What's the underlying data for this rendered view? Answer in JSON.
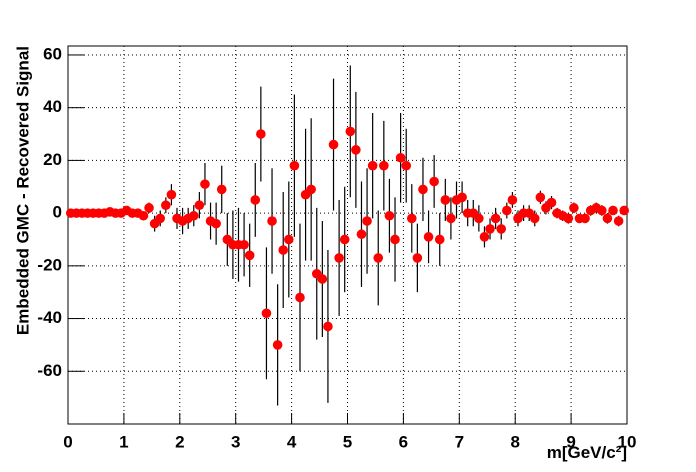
{
  "chart_data": {
    "type": "scatter",
    "x_label": "m[GeV/c²]",
    "y_label": "Embedded GMC - Recovered Signal",
    "xlim": [
      0,
      10
    ],
    "ylim": [
      -80,
      63.4
    ],
    "xticks": [
      0,
      1,
      2,
      3,
      4,
      5,
      6,
      7,
      8,
      9,
      10
    ],
    "yticks": [
      -60,
      -40,
      -20,
      0,
      20,
      40,
      60
    ],
    "grid": true,
    "series": [
      {
        "color": "#ff0000",
        "x": [
          0.05,
          0.15,
          0.25,
          0.35,
          0.45,
          0.55,
          0.65,
          0.75,
          0.85,
          0.95,
          1.05,
          1.15,
          1.25,
          1.35,
          1.45,
          1.55,
          1.65,
          1.75,
          1.85,
          1.95,
          2.05,
          2.15,
          2.25,
          2.35,
          2.45,
          2.55,
          2.65,
          2.75,
          2.85,
          2.95,
          3.05,
          3.15,
          3.25,
          3.35,
          3.45,
          3.55,
          3.65,
          3.75,
          3.85,
          3.95,
          4.05,
          4.15,
          4.25,
          4.35,
          4.45,
          4.55,
          4.65,
          4.75,
          4.85,
          4.95,
          5.05,
          5.15,
          5.25,
          5.35,
          5.45,
          5.55,
          5.65,
          5.75,
          5.85,
          5.95,
          6.05,
          6.15,
          6.25,
          6.35,
          6.45,
          6.55,
          6.65,
          6.75,
          6.85,
          6.95,
          7.05,
          7.15,
          7.25,
          7.35,
          7.45,
          7.55,
          7.65,
          7.75,
          7.85,
          7.95,
          8.05,
          8.15,
          8.25,
          8.35,
          8.45,
          8.55,
          8.65,
          8.75,
          8.85,
          8.95,
          9.05,
          9.15,
          9.25,
          9.35,
          9.45,
          9.55,
          9.65,
          9.75,
          9.85,
          9.95
        ],
        "values": [
          0,
          0,
          0,
          0,
          0,
          0,
          0,
          0.5,
          0,
          0,
          1,
          0,
          0,
          -1,
          2,
          -4,
          -2,
          3,
          7,
          -2,
          -3,
          -2,
          -1,
          3,
          11,
          -3,
          -4,
          9,
          -10,
          -12,
          -12,
          -12,
          -16,
          5,
          30,
          -38,
          -3,
          -50,
          -14,
          -10,
          18,
          -32,
          7,
          9,
          -23,
          -25,
          -43,
          26,
          -17,
          -10,
          31,
          24,
          -8,
          -3,
          18,
          -17,
          18,
          -1,
          -10,
          21,
          18,
          -2,
          -17,
          9,
          -9,
          12,
          -10,
          5,
          -2,
          5,
          6,
          0,
          0,
          -2,
          -9,
          -6,
          -2,
          -6,
          1,
          5,
          -2,
          0,
          0,
          -2,
          6,
          2,
          4,
          0,
          -1,
          -2,
          2,
          -2,
          -2,
          1,
          2,
          1,
          -2,
          1,
          -3,
          1
        ],
        "errors": [
          0.5,
          0.5,
          0.5,
          0.5,
          0.5,
          0.5,
          0.5,
          0.5,
          0.5,
          0.5,
          0.8,
          1,
          1.2,
          1.5,
          2,
          3,
          3,
          3,
          4,
          4,
          5,
          4,
          4,
          5,
          8,
          7,
          8,
          9,
          10,
          13,
          14,
          12,
          12,
          14,
          18,
          25,
          20,
          23,
          22,
          22,
          27,
          28,
          25,
          27,
          25,
          22,
          29,
          25,
          22,
          20,
          25,
          22,
          20,
          20,
          20,
          18,
          17,
          14,
          16,
          17,
          14,
          13,
          13,
          12,
          10,
          10,
          10,
          8,
          8,
          7,
          6,
          5,
          5,
          5,
          4,
          4,
          4,
          4,
          3,
          3,
          3,
          3,
          3,
          3,
          2.5,
          2.5,
          2.5,
          2,
          2,
          2,
          2,
          1.5,
          1.5,
          2,
          2,
          2,
          2,
          1.5,
          2,
          1.5
        ]
      }
    ]
  }
}
